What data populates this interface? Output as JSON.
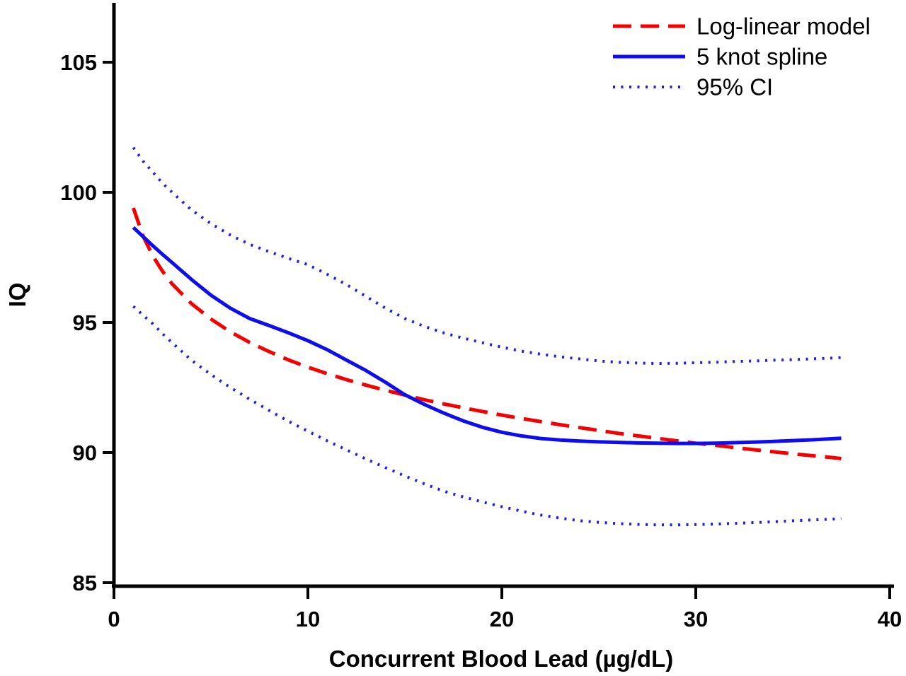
{
  "chart_data": {
    "type": "line",
    "title": "",
    "xlabel": "Concurrent Blood Lead (µg/dL)",
    "ylabel": "IQ",
    "xlim": [
      0,
      40
    ],
    "ylim": [
      85,
      105
    ],
    "x_ticks": [
      "0",
      "10",
      "20",
      "30",
      "40"
    ],
    "y_ticks": [
      "85",
      "90",
      "95",
      "100",
      "105"
    ],
    "grid": false,
    "legend_position": "top-right",
    "axis_color": "#000000",
    "x": [
      1,
      1.5,
      2,
      2.5,
      3,
      4,
      5,
      6,
      7,
      8,
      9,
      10,
      11,
      12,
      13,
      14,
      15,
      16,
      17,
      18,
      19,
      20,
      21,
      22,
      23,
      24,
      25,
      26,
      27,
      28,
      29,
      30,
      31,
      32,
      33,
      34,
      35,
      36,
      37,
      37.5
    ],
    "series": [
      {
        "name": "ci-upper",
        "legend_label": "95% CI",
        "color": "#1d1df0",
        "style": "dotted",
        "width": 4,
        "values": [
          101.72,
          101.2,
          100.78,
          100.35,
          100.0,
          99.32,
          98.8,
          98.36,
          98.0,
          97.72,
          97.46,
          97.22,
          96.85,
          96.45,
          96.0,
          95.55,
          95.15,
          94.85,
          94.6,
          94.4,
          94.22,
          94.05,
          93.9,
          93.78,
          93.68,
          93.6,
          93.52,
          93.47,
          93.44,
          93.42,
          93.43,
          93.45,
          93.47,
          93.5,
          93.52,
          93.55,
          93.57,
          93.6,
          93.63,
          93.65
        ]
      },
      {
        "name": "ci-lower",
        "legend_label": "95% CI",
        "color": "#1d1df0",
        "style": "dotted",
        "width": 4,
        "values": [
          95.62,
          95.28,
          94.95,
          94.57,
          94.22,
          93.55,
          93.0,
          92.5,
          92.05,
          91.62,
          91.2,
          90.82,
          90.45,
          90.1,
          89.75,
          89.42,
          89.1,
          88.8,
          88.52,
          88.3,
          88.1,
          87.92,
          87.75,
          87.6,
          87.48,
          87.38,
          87.32,
          87.27,
          87.24,
          87.22,
          87.22,
          87.23,
          87.25,
          87.28,
          87.31,
          87.34,
          87.38,
          87.41,
          87.44,
          87.46
        ]
      },
      {
        "name": "log-linear",
        "legend_label": "Log-linear model",
        "color": "#f40000",
        "style": "dashed",
        "width": 5,
        "values": [
          99.4,
          98.32,
          97.56,
          96.97,
          96.48,
          95.72,
          95.13,
          94.64,
          94.23,
          93.88,
          93.56,
          93.28,
          93.03,
          92.8,
          92.59,
          92.39,
          92.21,
          92.03,
          91.87,
          91.72,
          91.58,
          91.44,
          91.31,
          91.19,
          91.07,
          90.96,
          90.85,
          90.74,
          90.64,
          90.55,
          90.45,
          90.36,
          90.28,
          90.19,
          90.11,
          90.03,
          89.95,
          89.88,
          89.81,
          89.77
        ]
      },
      {
        "name": "spline",
        "legend_label": "5 knot spline",
        "color": "#0d0dee",
        "style": "solid",
        "width": 5,
        "values": [
          98.65,
          98.3,
          97.95,
          97.62,
          97.3,
          96.65,
          96.05,
          95.55,
          95.15,
          94.88,
          94.6,
          94.3,
          93.95,
          93.55,
          93.15,
          92.7,
          92.22,
          91.85,
          91.52,
          91.22,
          90.97,
          90.78,
          90.64,
          90.54,
          90.48,
          90.44,
          90.41,
          90.39,
          90.37,
          90.36,
          90.35,
          90.35,
          90.36,
          90.38,
          90.4,
          90.43,
          90.46,
          90.49,
          90.53,
          90.55
        ]
      }
    ],
    "legend": [
      {
        "label": "Log-linear model",
        "style": "dashed",
        "color": "#f40000"
      },
      {
        "label": "5 knot spline",
        "style": "solid",
        "color": "#0d0dee"
      },
      {
        "label": "95% CI",
        "style": "dotted",
        "color": "#1d1df0"
      }
    ]
  }
}
